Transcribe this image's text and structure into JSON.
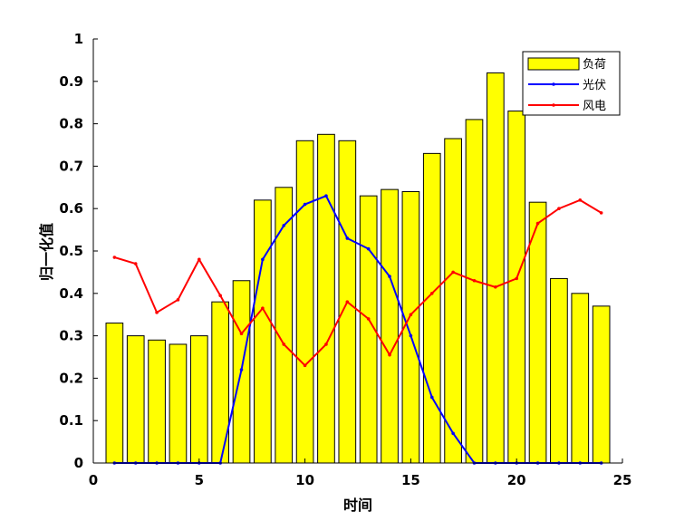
{
  "chart_data": {
    "type": "bar+line",
    "xlabel": "时间",
    "ylabel": "归一化值",
    "xlim": [
      0,
      25
    ],
    "ylim": [
      0,
      1
    ],
    "xticks": [
      0,
      5,
      10,
      15,
      20,
      25
    ],
    "yticks": [
      0,
      0.1,
      0.2,
      0.3,
      0.4,
      0.5,
      0.6,
      0.7,
      0.8,
      0.9,
      1
    ],
    "x": [
      1,
      2,
      3,
      4,
      5,
      6,
      7,
      8,
      9,
      10,
      11,
      12,
      13,
      14,
      15,
      16,
      17,
      18,
      19,
      20,
      21,
      22,
      23,
      24
    ],
    "legend_position": "top-right",
    "series": [
      {
        "name": "负荷",
        "kind": "bar",
        "color": "#FFFF00",
        "values": [
          0.33,
          0.3,
          0.29,
          0.28,
          0.3,
          0.38,
          0.43,
          0.62,
          0.65,
          0.76,
          0.775,
          0.76,
          0.63,
          0.645,
          0.64,
          0.73,
          0.765,
          0.81,
          0.92,
          0.83,
          0.615,
          0.435,
          0.4,
          0.37
        ]
      },
      {
        "name": "光伏",
        "kind": "line",
        "color": "#0000FF",
        "values": [
          0,
          0,
          0,
          0,
          0,
          0,
          0.22,
          0.48,
          0.56,
          0.61,
          0.63,
          0.53,
          0.505,
          0.44,
          0.3,
          0.155,
          0.07,
          0,
          0,
          0,
          0,
          0,
          0,
          0
        ]
      },
      {
        "name": "风电",
        "kind": "line",
        "color": "#FF0000",
        "values": [
          0.485,
          0.47,
          0.355,
          0.385,
          0.48,
          0.395,
          0.305,
          0.365,
          0.28,
          0.23,
          0.28,
          0.38,
          0.34,
          0.255,
          0.35,
          0.4,
          0.45,
          0.43,
          0.415,
          0.435,
          0.565,
          0.6,
          0.62,
          0.59
        ]
      }
    ]
  }
}
